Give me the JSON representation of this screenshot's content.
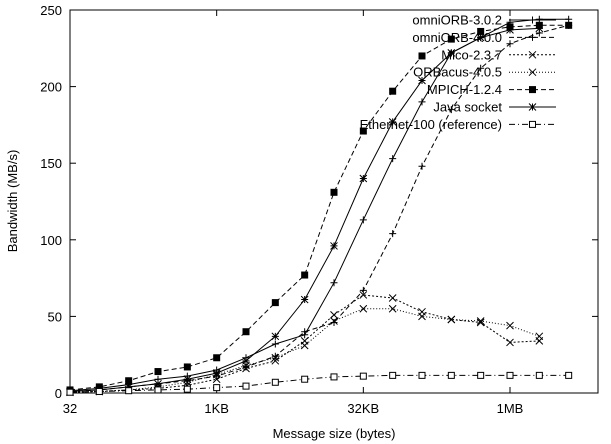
{
  "chart_data": {
    "type": "line",
    "xlabel": "Message size (bytes)",
    "ylabel": "Bandwidth (MB/s)",
    "xscale": "log2",
    "xlim": [
      32,
      8388608
    ],
    "ylim": [
      0,
      250
    ],
    "x_ticks": [
      {
        "value": 32,
        "label": "32"
      },
      {
        "value": 1024,
        "label": "1KB"
      },
      {
        "value": 32768,
        "label": "32KB"
      },
      {
        "value": 1048576,
        "label": "1MB"
      }
    ],
    "y_ticks": [
      0,
      50,
      100,
      150,
      200,
      250
    ],
    "legend_position": "top-right",
    "x": [
      32,
      64,
      128,
      256,
      512,
      1024,
      2048,
      4096,
      8192,
      16384,
      32768,
      65536,
      131072,
      262144,
      524288,
      1048576,
      2097152,
      4194304
    ],
    "series": [
      {
        "name": "omniORB-3.0.2",
        "marker": "plus",
        "dash": "solid",
        "values": [
          1.5,
          3,
          5.5,
          9,
          11,
          15,
          23,
          32,
          38,
          72,
          113,
          153,
          190,
          222,
          232,
          242,
          244,
          244
        ]
      },
      {
        "name": "omniORB-4.0.0",
        "marker": "plus",
        "dash": "dashed",
        "values": [
          1,
          2,
          4,
          6,
          8,
          11,
          17,
          24,
          40,
          46,
          67,
          104,
          148,
          185,
          212,
          228,
          235,
          240
        ]
      },
      {
        "name": "Mico-2.3.7",
        "marker": "cross",
        "dash": "dotted",
        "values": [
          0.5,
          1,
          2,
          3,
          5,
          9,
          16,
          21,
          34,
          51,
          64,
          62,
          53,
          48,
          46,
          33,
          34,
          null
        ]
      },
      {
        "name": "ORBacus-4.0.5",
        "marker": "cross",
        "dash": "dotted-fine",
        "values": [
          0.5,
          1,
          2,
          4,
          7,
          12,
          18,
          23,
          31,
          47,
          55,
          55,
          50,
          48,
          47,
          44,
          37,
          null
        ]
      },
      {
        "name": "MPICH-1.2.4",
        "marker": "filled-square",
        "dash": "dashed",
        "values": [
          2,
          4,
          8,
          14,
          17,
          23,
          40,
          59,
          77,
          131,
          171,
          197,
          220,
          231,
          236,
          239,
          240,
          240
        ]
      },
      {
        "name": "Java socket",
        "marker": "star",
        "dash": "solid",
        "values": [
          1,
          2,
          4,
          6,
          9,
          13,
          21,
          37,
          61,
          96,
          140,
          177,
          204,
          222,
          232,
          237,
          238,
          null
        ]
      },
      {
        "name": "Ethernet-100 (reference)",
        "marker": "open-square",
        "dash": "dash-dot",
        "values": [
          0.5,
          1,
          1.5,
          2,
          2.5,
          3.5,
          4.5,
          7,
          9,
          10.5,
          11,
          11.5,
          11.5,
          11.5,
          11.5,
          11.5,
          11.5,
          11.5
        ]
      }
    ]
  }
}
